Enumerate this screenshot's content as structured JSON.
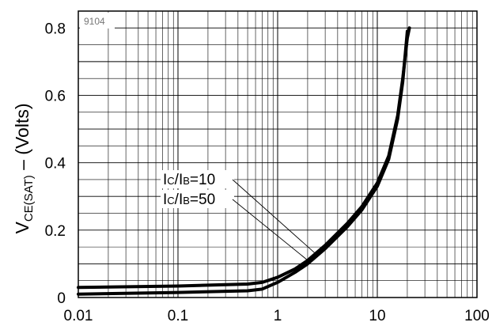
{
  "chart_data": {
    "type": "line",
    "code": "9104",
    "ylabel": {
      "main": "V",
      "sub": "CE(SAT)",
      "tail": " – (Volts)"
    },
    "xlabel": "",
    "xscale": "log",
    "xlim": [
      0.01,
      100
    ],
    "ylim": [
      0,
      0.85
    ],
    "x_tick_labels": [
      "0.01",
      "0.1",
      "1",
      "10",
      "100"
    ],
    "y_tick_labels": [
      "0",
      "0.2",
      "0.4",
      "0.6",
      "0.8"
    ],
    "grid": true,
    "series": [
      {
        "name": "IC/IB=10",
        "x": [
          0.01,
          0.1,
          0.5,
          0.7,
          1,
          1.5,
          2,
          3,
          5,
          7,
          10,
          13,
          16,
          18,
          20
        ],
        "y": [
          0.01,
          0.015,
          0.02,
          0.025,
          0.045,
          0.075,
          0.1,
          0.145,
          0.21,
          0.26,
          0.33,
          0.41,
          0.53,
          0.64,
          0.79
        ]
      },
      {
        "name": "IC/IB=50",
        "x": [
          0.01,
          0.1,
          0.5,
          0.7,
          1,
          1.5,
          2,
          3,
          5,
          7,
          10,
          13,
          16,
          18,
          20,
          21
        ],
        "y": [
          0.03,
          0.034,
          0.04,
          0.045,
          0.06,
          0.085,
          0.11,
          0.155,
          0.22,
          0.27,
          0.34,
          0.42,
          0.54,
          0.65,
          0.77,
          0.8
        ]
      }
    ],
    "annotations": [
      {
        "pre": "I",
        "s1": "C",
        "mid": "/I",
        "s2": "B",
        "post": "=10",
        "target_x": 2.4,
        "target_series": 1
      },
      {
        "pre": "I",
        "s1": "C",
        "mid": "/I",
        "s2": "B",
        "post": "=50",
        "target_x": 2.1,
        "target_series": 0
      }
    ]
  }
}
